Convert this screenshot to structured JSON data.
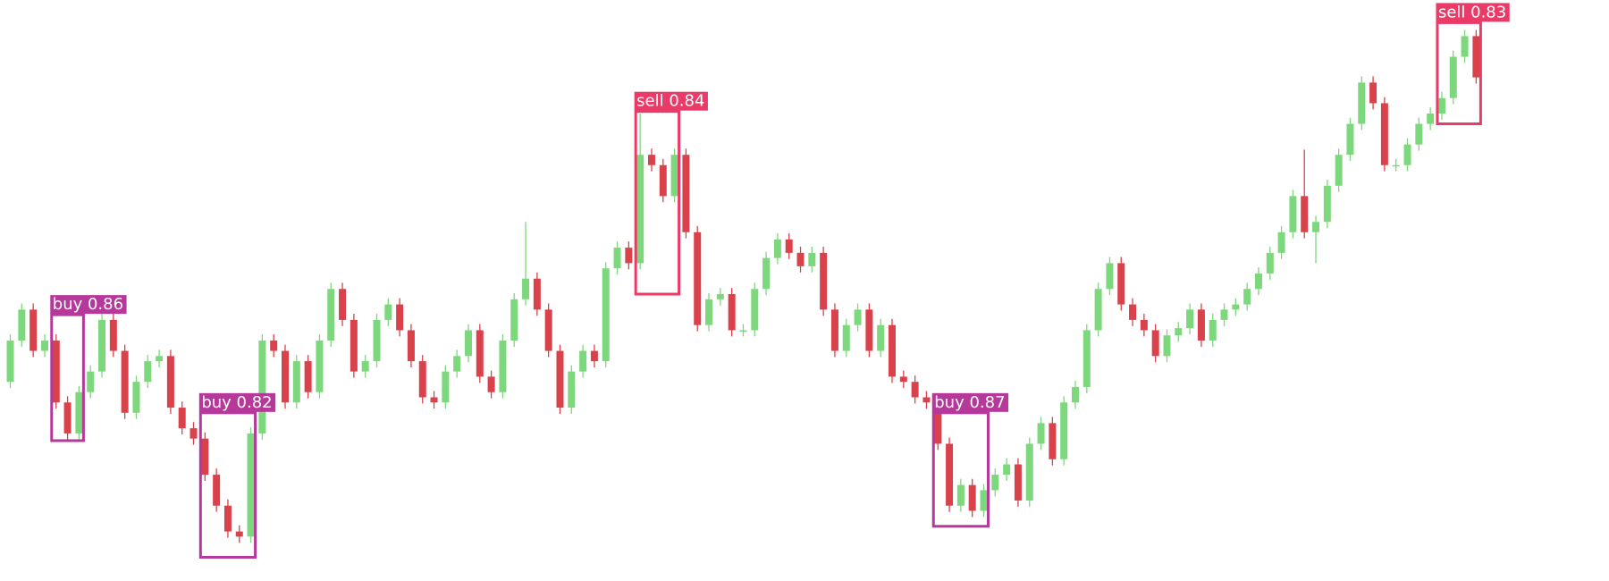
{
  "chart_data": {
    "type": "candlestick",
    "up_color": "#7dd87d",
    "down_color": "#d9424b",
    "ylim": [
      0,
      563
    ],
    "xlim": [
      -0.9,
      139.6
    ],
    "ohlc": [
      [
        193,
        239,
        187,
        233
      ],
      [
        233,
        269,
        227,
        263
      ],
      [
        263,
        269,
        217,
        223
      ],
      [
        223,
        239,
        217,
        233
      ],
      [
        233,
        239,
        167,
        173
      ],
      [
        173,
        179,
        137,
        143
      ],
      [
        143,
        189,
        137,
        183
      ],
      [
        183,
        209,
        177,
        203
      ],
      [
        203,
        259,
        197,
        253
      ],
      [
        253,
        259,
        217,
        223
      ],
      [
        223,
        229,
        157,
        163
      ],
      [
        163,
        199,
        157,
        193
      ],
      [
        193,
        219,
        187,
        213
      ],
      [
        213,
        224,
        207,
        218
      ],
      [
        218,
        224,
        162,
        168
      ],
      [
        168,
        174,
        142,
        148
      ],
      [
        148,
        154,
        132,
        138
      ],
      [
        138,
        144,
        97,
        103
      ],
      [
        103,
        109,
        67,
        73
      ],
      [
        73,
        79,
        42,
        48
      ],
      [
        48,
        54,
        37,
        43
      ],
      [
        43,
        149,
        37,
        143
      ],
      [
        143,
        239,
        137,
        233
      ],
      [
        233,
        239,
        217,
        223
      ],
      [
        223,
        229,
        167,
        173
      ],
      [
        173,
        219,
        167,
        213
      ],
      [
        213,
        219,
        177,
        183
      ],
      [
        183,
        239,
        177,
        233
      ],
      [
        233,
        289,
        227,
        283
      ],
      [
        283,
        289,
        247,
        253
      ],
      [
        253,
        259,
        197,
        203
      ],
      [
        203,
        219,
        197,
        213
      ],
      [
        213,
        259,
        207,
        253
      ],
      [
        253,
        274,
        247,
        268
      ],
      [
        268,
        274,
        237,
        243
      ],
      [
        243,
        249,
        207,
        213
      ],
      [
        213,
        219,
        172,
        178
      ],
      [
        178,
        184,
        167,
        173
      ],
      [
        173,
        209,
        167,
        203
      ],
      [
        203,
        224,
        197,
        218
      ],
      [
        218,
        249,
        212,
        243
      ],
      [
        243,
        249,
        192,
        198
      ],
      [
        198,
        204,
        177,
        183
      ],
      [
        183,
        239,
        177,
        233
      ],
      [
        233,
        279,
        227,
        273
      ],
      [
        273,
        348,
        267,
        293
      ],
      [
        293,
        299,
        257,
        263
      ],
      [
        263,
        269,
        217,
        223
      ],
      [
        223,
        229,
        162,
        168
      ],
      [
        168,
        209,
        162,
        203
      ],
      [
        203,
        229,
        197,
        223
      ],
      [
        223,
        229,
        207,
        213
      ],
      [
        213,
        309,
        207,
        303
      ],
      [
        303,
        329,
        297,
        323
      ],
      [
        323,
        329,
        302,
        308
      ],
      [
        308,
        453,
        302,
        413
      ],
      [
        413,
        419,
        397,
        403
      ],
      [
        403,
        409,
        367,
        373
      ],
      [
        373,
        419,
        367,
        413
      ],
      [
        413,
        419,
        332,
        338
      ],
      [
        338,
        344,
        242,
        248
      ],
      [
        248,
        279,
        242,
        273
      ],
      [
        273,
        284,
        267,
        278
      ],
      [
        278,
        284,
        237,
        243
      ],
      [
        243,
        249,
        237,
        243
      ],
      [
        243,
        289,
        237,
        283
      ],
      [
        283,
        319,
        277,
        313
      ],
      [
        313,
        337,
        307,
        331
      ],
      [
        331,
        337,
        312,
        318
      ],
      [
        318,
        324,
        299,
        305
      ],
      [
        305,
        324,
        299,
        318
      ],
      [
        318,
        324,
        257,
        263
      ],
      [
        263,
        269,
        217,
        223
      ],
      [
        223,
        254,
        217,
        248
      ],
      [
        248,
        269,
        242,
        263
      ],
      [
        263,
        269,
        217,
        223
      ],
      [
        223,
        254,
        217,
        248
      ],
      [
        248,
        254,
        192,
        198
      ],
      [
        198,
        204,
        187,
        193
      ],
      [
        193,
        199,
        172,
        178
      ],
      [
        178,
        184,
        167,
        173
      ],
      [
        173,
        179,
        127,
        133
      ],
      [
        133,
        139,
        67,
        73
      ],
      [
        73,
        99,
        67,
        93
      ],
      [
        93,
        99,
        62,
        68
      ],
      [
        68,
        94,
        62,
        88
      ],
      [
        88,
        109,
        82,
        103
      ],
      [
        103,
        119,
        97,
        113
      ],
      [
        113,
        119,
        72,
        78
      ],
      [
        78,
        139,
        72,
        133
      ],
      [
        133,
        159,
        127,
        153
      ],
      [
        153,
        159,
        112,
        118
      ],
      [
        118,
        179,
        112,
        173
      ],
      [
        173,
        194,
        167,
        188
      ],
      [
        188,
        249,
        182,
        243
      ],
      [
        243,
        289,
        237,
        283
      ],
      [
        283,
        314,
        277,
        308
      ],
      [
        308,
        314,
        262,
        268
      ],
      [
        268,
        274,
        247,
        253
      ],
      [
        253,
        259,
        237,
        243
      ],
      [
        243,
        249,
        212,
        218
      ],
      [
        218,
        244,
        212,
        238
      ],
      [
        238,
        251,
        232,
        245
      ],
      [
        245,
        269,
        239,
        263
      ],
      [
        263,
        269,
        227,
        233
      ],
      [
        233,
        259,
        227,
        253
      ],
      [
        253,
        269,
        247,
        263
      ],
      [
        263,
        274,
        257,
        268
      ],
      [
        268,
        289,
        262,
        283
      ],
      [
        283,
        304,
        277,
        298
      ],
      [
        298,
        324,
        292,
        318
      ],
      [
        318,
        344,
        312,
        338
      ],
      [
        338,
        379,
        332,
        373
      ],
      [
        373,
        418,
        332,
        338
      ],
      [
        338,
        354,
        308,
        348
      ],
      [
        348,
        389,
        342,
        383
      ],
      [
        383,
        419,
        377,
        413
      ],
      [
        413,
        449,
        407,
        443
      ],
      [
        443,
        489,
        437,
        483
      ],
      [
        483,
        489,
        457,
        463
      ],
      [
        463,
        469,
        397,
        403
      ],
      [
        403,
        409,
        397,
        403
      ],
      [
        403,
        429,
        397,
        423
      ],
      [
        423,
        449,
        417,
        443
      ],
      [
        443,
        459,
        437,
        453
      ],
      [
        453,
        474,
        447,
        468
      ],
      [
        468,
        514,
        462,
        508
      ],
      [
        508,
        534,
        502,
        528
      ],
      [
        528,
        534,
        482,
        488
      ]
    ],
    "detections": [
      {
        "label": "buy 0.86",
        "color": "#b5389a",
        "x": [
          4,
          6
        ],
        "range": [
          136,
          258
        ]
      },
      {
        "label": "buy 0.82",
        "color": "#b5389a",
        "x": [
          17,
          21
        ],
        "range": [
          23,
          163
        ]
      },
      {
        "label": "sell 0.84",
        "color": "#ea3a68",
        "x": [
          55,
          58
        ],
        "range": [
          278,
          455
        ]
      },
      {
        "label": "buy 0.87",
        "color": "#b5389a",
        "x": [
          81,
          85
        ],
        "range": [
          53,
          163
        ]
      },
      {
        "label": "sell 0.83",
        "color": "#ea3a68",
        "x": [
          125,
          128
        ],
        "range": [
          443,
          541
        ]
      }
    ]
  }
}
